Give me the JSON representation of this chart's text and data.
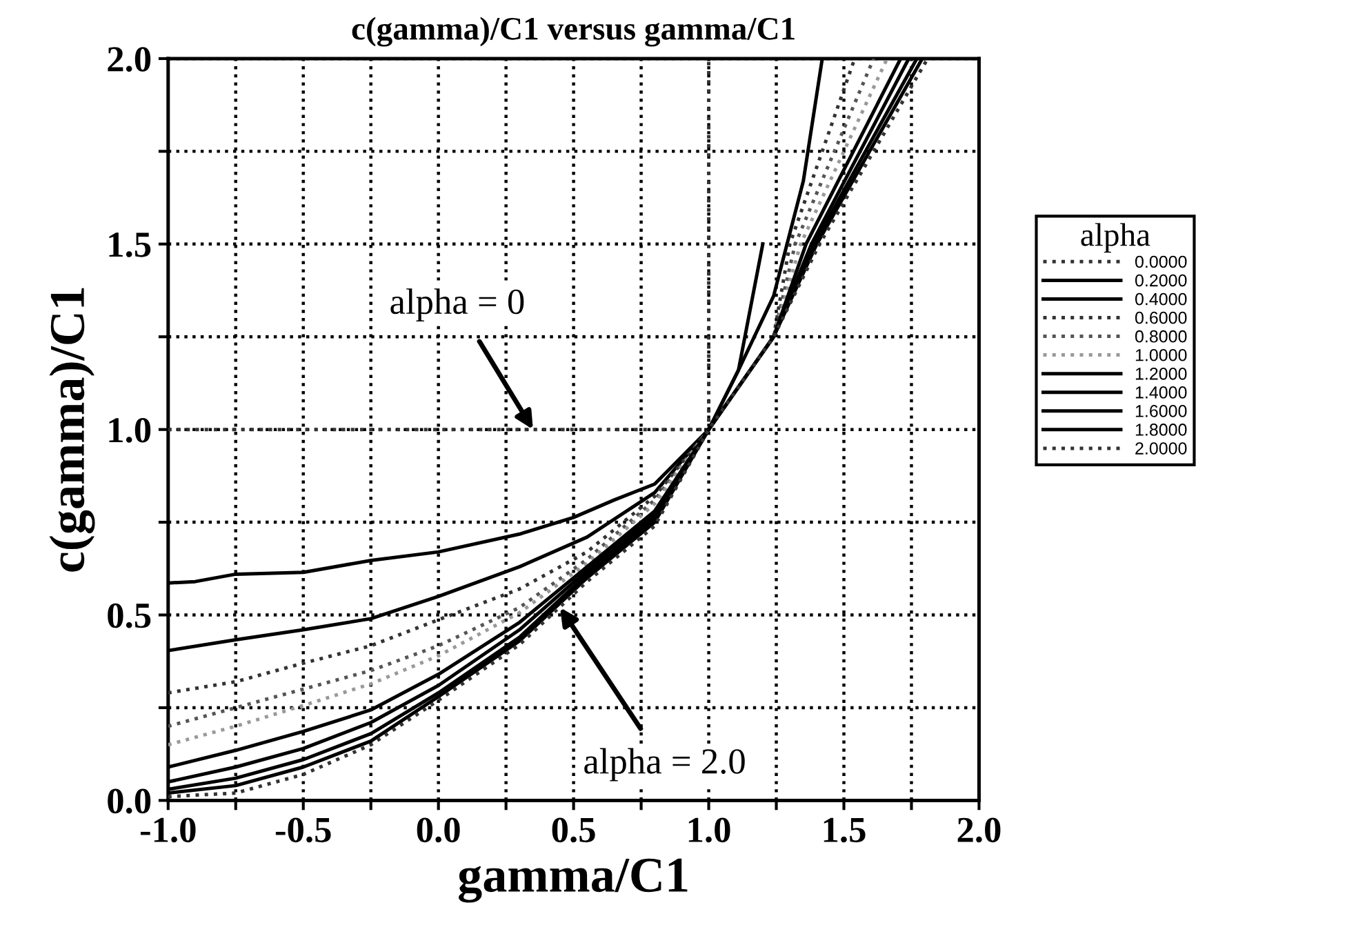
{
  "chart_data": {
    "type": "line",
    "title": "c(gamma)/C1 versus gamma/C1",
    "xlabel": "gamma/C1",
    "ylabel": "c(gamma)/C1",
    "legend_title": "alpha",
    "legend": "right",
    "grid": true,
    "marker": "none",
    "xlim": [
      -1.0,
      2.0
    ],
    "ylim": [
      0.0,
      2.0
    ],
    "xticks": [
      {
        "value": -1.0,
        "label": "-1.0"
      },
      {
        "value": -0.75,
        "label": null
      },
      {
        "value": -0.5,
        "label": "-0.5"
      },
      {
        "value": -0.25,
        "label": null
      },
      {
        "value": 0.0,
        "label": "0.0"
      },
      {
        "value": 0.25,
        "label": null
      },
      {
        "value": 0.5,
        "label": "0.5"
      },
      {
        "value": 0.75,
        "label": null
      },
      {
        "value": 1.0,
        "label": "1.0"
      },
      {
        "value": 1.25,
        "label": null
      },
      {
        "value": 1.5,
        "label": "1.5"
      },
      {
        "value": 1.75,
        "label": null
      },
      {
        "value": 2.0,
        "label": "2.0"
      }
    ],
    "yticks": [
      {
        "value": 0.0,
        "label": "0.0"
      },
      {
        "value": 0.25,
        "label": null
      },
      {
        "value": 0.5,
        "label": "0.5"
      },
      {
        "value": 0.75,
        "label": null
      },
      {
        "value": 1.0,
        "label": "1.0"
      },
      {
        "value": 1.25,
        "label": null
      },
      {
        "value": 1.5,
        "label": "1.5"
      },
      {
        "value": 1.75,
        "label": null
      },
      {
        "value": 2.0,
        "label": "2.0"
      }
    ],
    "annotations": [
      {
        "text": "alpha = 0",
        "x": 0.35,
        "y": 1.0
      },
      {
        "text": "alpha = 2.0",
        "x": 0.45,
        "y": 0.52
      }
    ],
    "series": [
      {
        "name": "0.0000",
        "color": "#333333",
        "line_style": "dotted",
        "x": [
          -1.0,
          1.0,
          1.0
        ],
        "values": [
          1.0,
          1.0,
          2.0
        ]
      },
      {
        "name": "0.2000",
        "color": "#000000",
        "line_style": "solid",
        "x": [
          -1.0,
          -0.9,
          -0.75,
          -0.5,
          -0.25,
          0.0,
          0.3,
          0.5,
          0.65,
          0.8,
          1.0,
          1.11,
          1.2
        ],
        "values": [
          0.586,
          0.59,
          0.61,
          0.615,
          0.647,
          0.67,
          0.718,
          0.763,
          0.81,
          0.853,
          1.0,
          1.16,
          1.5
        ]
      },
      {
        "name": "0.4000",
        "color": "#000000",
        "line_style": "solid",
        "x": [
          -1.0,
          -0.75,
          -0.5,
          -0.25,
          0.0,
          0.3,
          0.55,
          0.8,
          1.0,
          1.11,
          1.24,
          1.35,
          1.42
        ],
        "values": [
          0.404,
          0.433,
          0.46,
          0.49,
          0.55,
          0.63,
          0.71,
          0.83,
          1.0,
          1.16,
          1.36,
          1.67,
          2.0
        ]
      },
      {
        "name": "0.6000",
        "color": "#333333",
        "line_style": "dotted",
        "x": [
          -1.0,
          -0.75,
          -0.5,
          -0.25,
          0.0,
          0.3,
          0.55,
          0.8,
          1.0,
          1.24,
          1.3,
          1.54
        ],
        "values": [
          0.29,
          0.32,
          0.37,
          0.417,
          0.487,
          0.57,
          0.67,
          0.82,
          1.0,
          1.25,
          1.5,
          2.0
        ]
      },
      {
        "name": "0.8000",
        "color": "#555555",
        "line_style": "dotted",
        "x": [
          -1.0,
          -0.75,
          -0.5,
          -0.25,
          0.0,
          0.3,
          0.55,
          0.8,
          1.0,
          1.24,
          1.32,
          1.61
        ],
        "values": [
          0.2,
          0.25,
          0.3,
          0.35,
          0.417,
          0.52,
          0.65,
          0.81,
          1.0,
          1.25,
          1.5,
          2.0
        ]
      },
      {
        "name": "1.0000",
        "color": "#999999",
        "line_style": "dotted",
        "x": [
          -1.0,
          -0.75,
          -0.5,
          -0.25,
          0.0,
          0.3,
          0.55,
          0.8,
          1.0,
          1.24,
          1.34,
          1.66
        ],
        "values": [
          0.15,
          0.2,
          0.256,
          0.314,
          0.39,
          0.506,
          0.64,
          0.8,
          1.0,
          1.25,
          1.5,
          2.0
        ]
      },
      {
        "name": "1.2000",
        "color": "#000000",
        "line_style": "solid",
        "x": [
          -1.0,
          -0.75,
          -0.5,
          -0.25,
          0.0,
          0.3,
          0.55,
          0.8,
          1.0,
          1.24,
          1.36,
          1.71
        ],
        "values": [
          0.09,
          0.135,
          0.186,
          0.244,
          0.34,
          0.48,
          0.63,
          0.78,
          1.0,
          1.25,
          1.5,
          2.0
        ]
      },
      {
        "name": "1.4000",
        "color": "#000000",
        "line_style": "solid",
        "x": [
          -1.0,
          -0.75,
          -0.5,
          -0.25,
          0.0,
          0.3,
          0.55,
          0.8,
          1.0,
          1.24,
          1.38,
          1.74
        ],
        "values": [
          0.05,
          0.09,
          0.14,
          0.21,
          0.31,
          0.46,
          0.62,
          0.77,
          1.0,
          1.25,
          1.5,
          2.0
        ]
      },
      {
        "name": "1.6000",
        "color": "#000000",
        "line_style": "solid",
        "x": [
          -1.0,
          -0.75,
          -0.5,
          -0.25,
          0.0,
          0.3,
          0.55,
          0.8,
          1.0,
          1.24,
          1.39,
          1.77
        ],
        "values": [
          0.03,
          0.06,
          0.11,
          0.18,
          0.29,
          0.44,
          0.61,
          0.76,
          1.0,
          1.25,
          1.5,
          2.0
        ]
      },
      {
        "name": "1.8000",
        "color": "#000000",
        "line_style": "solid",
        "x": [
          -1.0,
          -0.75,
          -0.5,
          -0.25,
          0.0,
          0.3,
          0.55,
          0.8,
          1.0,
          1.24,
          1.4,
          1.79
        ],
        "values": [
          0.02,
          0.04,
          0.09,
          0.16,
          0.28,
          0.43,
          0.6,
          0.75,
          1.0,
          1.25,
          1.5,
          2.0
        ]
      },
      {
        "name": "2.0000",
        "color": "#333333",
        "line_style": "dotted",
        "x": [
          -1.0,
          -0.75,
          -0.5,
          -0.25,
          0.0,
          0.3,
          0.55,
          0.8,
          1.0,
          1.24,
          1.41,
          1.81
        ],
        "values": [
          0.01,
          0.02,
          0.07,
          0.15,
          0.27,
          0.42,
          0.59,
          0.74,
          1.0,
          1.25,
          1.5,
          2.0
        ]
      }
    ]
  }
}
